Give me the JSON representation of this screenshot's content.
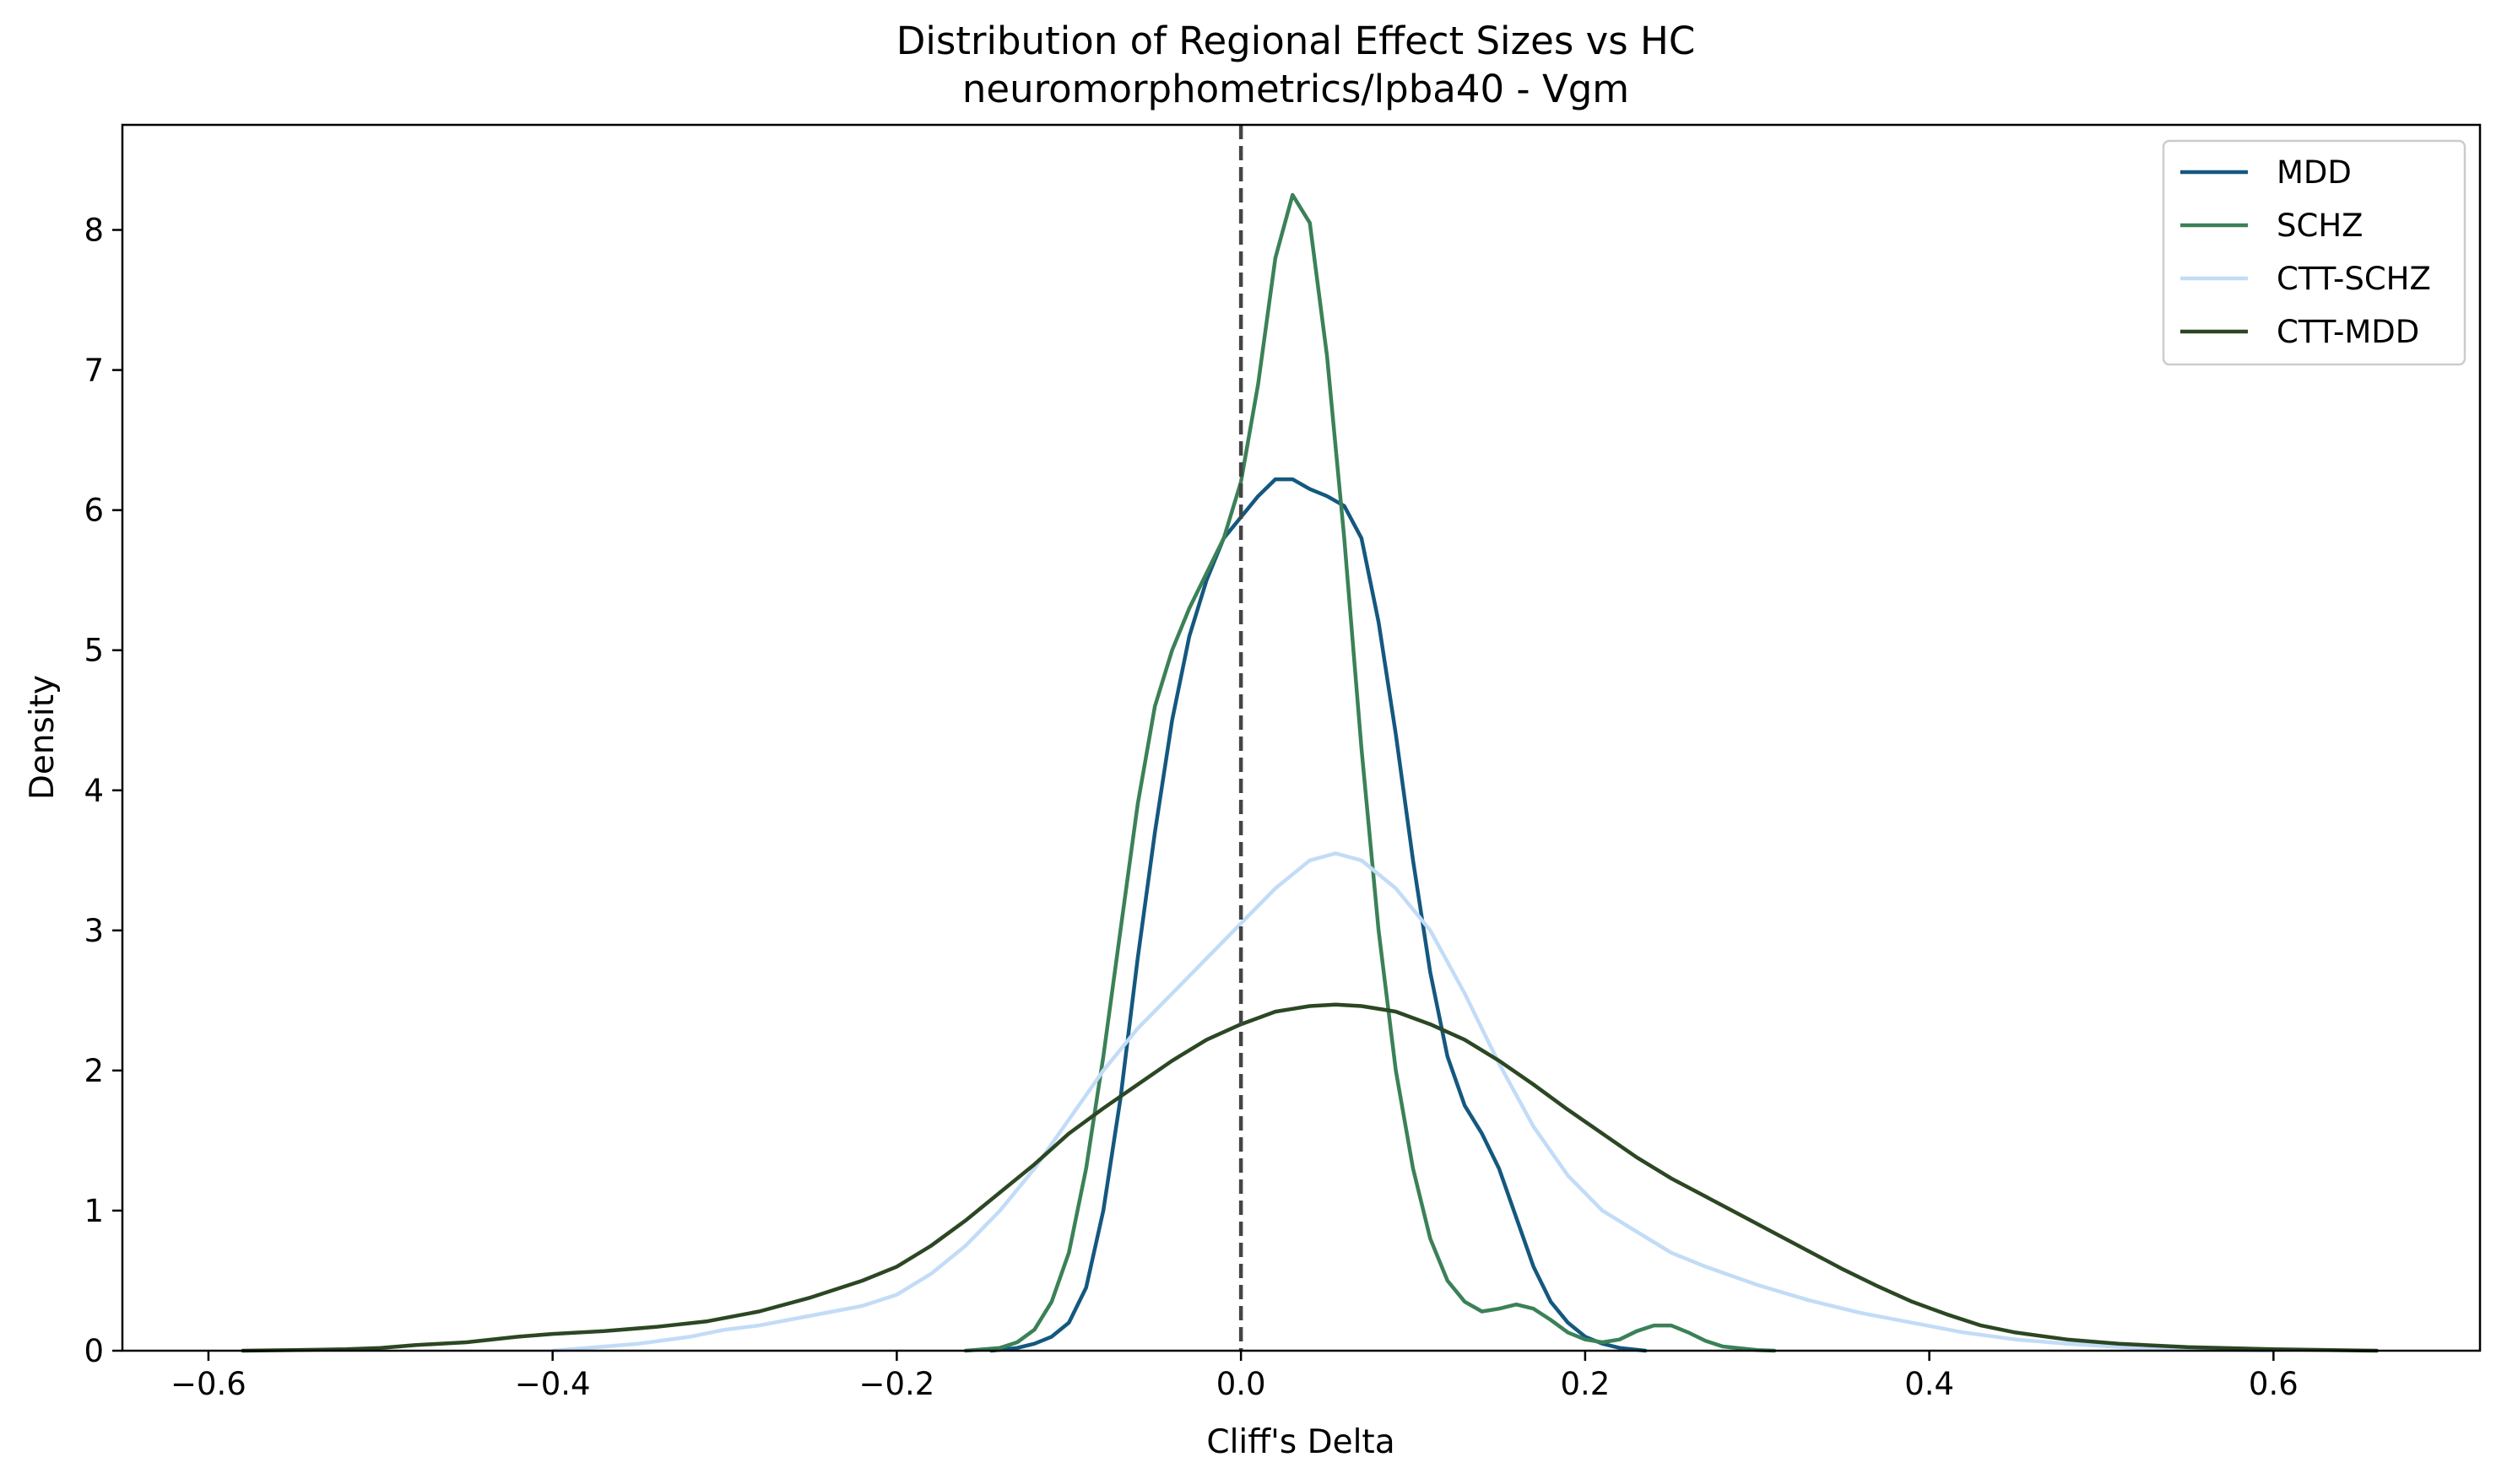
{
  "chart_data": {
    "type": "line",
    "title": "Distribution of Regional Effect Sizes vs HC",
    "subtitle": "neuromorphometrics/lpba40 - Vgm",
    "xlabel": "Cliff's Delta",
    "ylabel": "Density",
    "xlim": [
      -0.65,
      0.72
    ],
    "ylim": [
      0,
      8.75
    ],
    "xticks": [
      -0.6,
      -0.4,
      -0.2,
      0.0,
      0.2,
      0.4,
      0.6
    ],
    "xtick_labels": [
      "−0.6",
      "−0.4",
      "−0.2",
      "0.0",
      "0.2",
      "0.4",
      "0.6"
    ],
    "yticks": [
      0,
      1,
      2,
      3,
      4,
      5,
      6,
      7,
      8
    ],
    "ytick_labels": [
      "0",
      "1",
      "2",
      "3",
      "4",
      "5",
      "6",
      "7",
      "8"
    ],
    "reference_line": {
      "x": 0.0,
      "style": "dashed",
      "color": "#444444"
    },
    "grid": false,
    "legend_position": "top-right",
    "series": [
      {
        "name": "MDD",
        "color": "#14587f",
        "points": [
          [
            -0.145,
            0
          ],
          [
            -0.13,
            0.02
          ],
          [
            -0.12,
            0.05
          ],
          [
            -0.11,
            0.1
          ],
          [
            -0.1,
            0.2
          ],
          [
            -0.09,
            0.45
          ],
          [
            -0.08,
            1.0
          ],
          [
            -0.07,
            1.8
          ],
          [
            -0.06,
            2.8
          ],
          [
            -0.05,
            3.7
          ],
          [
            -0.04,
            4.5
          ],
          [
            -0.03,
            5.1
          ],
          [
            -0.02,
            5.5
          ],
          [
            -0.01,
            5.8
          ],
          [
            0.0,
            5.95
          ],
          [
            0.01,
            6.1
          ],
          [
            0.02,
            6.22
          ],
          [
            0.03,
            6.22
          ],
          [
            0.04,
            6.15
          ],
          [
            0.05,
            6.1
          ],
          [
            0.06,
            6.03
          ],
          [
            0.07,
            5.8
          ],
          [
            0.08,
            5.2
          ],
          [
            0.09,
            4.4
          ],
          [
            0.1,
            3.5
          ],
          [
            0.11,
            2.7
          ],
          [
            0.12,
            2.1
          ],
          [
            0.13,
            1.75
          ],
          [
            0.14,
            1.55
          ],
          [
            0.15,
            1.3
          ],
          [
            0.16,
            0.95
          ],
          [
            0.17,
            0.6
          ],
          [
            0.18,
            0.35
          ],
          [
            0.19,
            0.2
          ],
          [
            0.2,
            0.1
          ],
          [
            0.21,
            0.05
          ],
          [
            0.22,
            0.02
          ],
          [
            0.235,
            0
          ]
        ]
      },
      {
        "name": "SCHZ",
        "color": "#3b8157",
        "points": [
          [
            -0.16,
            0
          ],
          [
            -0.14,
            0.02
          ],
          [
            -0.13,
            0.06
          ],
          [
            -0.12,
            0.15
          ],
          [
            -0.11,
            0.35
          ],
          [
            -0.1,
            0.7
          ],
          [
            -0.09,
            1.3
          ],
          [
            -0.08,
            2.1
          ],
          [
            -0.07,
            3.0
          ],
          [
            -0.06,
            3.9
          ],
          [
            -0.05,
            4.6
          ],
          [
            -0.04,
            5.0
          ],
          [
            -0.03,
            5.3
          ],
          [
            -0.02,
            5.55
          ],
          [
            -0.01,
            5.8
          ],
          [
            0.0,
            6.2
          ],
          [
            0.01,
            6.9
          ],
          [
            0.02,
            7.8
          ],
          [
            0.03,
            8.25
          ],
          [
            0.04,
            8.05
          ],
          [
            0.05,
            7.1
          ],
          [
            0.06,
            5.8
          ],
          [
            0.07,
            4.3
          ],
          [
            0.08,
            3.0
          ],
          [
            0.09,
            2.0
          ],
          [
            0.1,
            1.3
          ],
          [
            0.11,
            0.8
          ],
          [
            0.12,
            0.5
          ],
          [
            0.13,
            0.35
          ],
          [
            0.14,
            0.28
          ],
          [
            0.15,
            0.3
          ],
          [
            0.16,
            0.33
          ],
          [
            0.17,
            0.3
          ],
          [
            0.18,
            0.22
          ],
          [
            0.19,
            0.13
          ],
          [
            0.2,
            0.08
          ],
          [
            0.21,
            0.06
          ],
          [
            0.22,
            0.08
          ],
          [
            0.23,
            0.14
          ],
          [
            0.24,
            0.18
          ],
          [
            0.25,
            0.18
          ],
          [
            0.26,
            0.13
          ],
          [
            0.27,
            0.07
          ],
          [
            0.28,
            0.03
          ],
          [
            0.3,
            0.005
          ],
          [
            0.31,
            0
          ]
        ]
      },
      {
        "name": "CTT-SCHZ",
        "color": "#c2dcf7",
        "points": [
          [
            -0.4,
            0
          ],
          [
            -0.38,
            0.02
          ],
          [
            -0.35,
            0.05
          ],
          [
            -0.32,
            0.1
          ],
          [
            -0.3,
            0.15
          ],
          [
            -0.28,
            0.18
          ],
          [
            -0.25,
            0.25
          ],
          [
            -0.22,
            0.32
          ],
          [
            -0.2,
            0.4
          ],
          [
            -0.18,
            0.55
          ],
          [
            -0.16,
            0.75
          ],
          [
            -0.14,
            1.0
          ],
          [
            -0.12,
            1.3
          ],
          [
            -0.1,
            1.65
          ],
          [
            -0.08,
            2.0
          ],
          [
            -0.06,
            2.3
          ],
          [
            -0.04,
            2.55
          ],
          [
            -0.02,
            2.8
          ],
          [
            0.0,
            3.05
          ],
          [
            0.02,
            3.3
          ],
          [
            0.04,
            3.5
          ],
          [
            0.055,
            3.55
          ],
          [
            0.07,
            3.5
          ],
          [
            0.09,
            3.3
          ],
          [
            0.11,
            3.0
          ],
          [
            0.13,
            2.55
          ],
          [
            0.15,
            2.05
          ],
          [
            0.17,
            1.6
          ],
          [
            0.19,
            1.25
          ],
          [
            0.21,
            1.0
          ],
          [
            0.23,
            0.85
          ],
          [
            0.25,
            0.7
          ],
          [
            0.27,
            0.6
          ],
          [
            0.3,
            0.47
          ],
          [
            0.33,
            0.36
          ],
          [
            0.36,
            0.27
          ],
          [
            0.39,
            0.2
          ],
          [
            0.42,
            0.13
          ],
          [
            0.45,
            0.08
          ],
          [
            0.48,
            0.05
          ],
          [
            0.52,
            0.02
          ],
          [
            0.56,
            0.01
          ],
          [
            0.6,
            0
          ]
        ]
      },
      {
        "name": "CTT-MDD",
        "color": "#2b4723",
        "points": [
          [
            -0.58,
            0
          ],
          [
            -0.55,
            0.005
          ],
          [
            -0.52,
            0.01
          ],
          [
            -0.5,
            0.02
          ],
          [
            -0.48,
            0.04
          ],
          [
            -0.45,
            0.06
          ],
          [
            -0.42,
            0.1
          ],
          [
            -0.4,
            0.12
          ],
          [
            -0.37,
            0.14
          ],
          [
            -0.34,
            0.17
          ],
          [
            -0.31,
            0.21
          ],
          [
            -0.28,
            0.28
          ],
          [
            -0.25,
            0.38
          ],
          [
            -0.22,
            0.5
          ],
          [
            -0.2,
            0.6
          ],
          [
            -0.18,
            0.75
          ],
          [
            -0.16,
            0.93
          ],
          [
            -0.14,
            1.13
          ],
          [
            -0.12,
            1.33
          ],
          [
            -0.1,
            1.55
          ],
          [
            -0.08,
            1.73
          ],
          [
            -0.06,
            1.9
          ],
          [
            -0.04,
            2.07
          ],
          [
            -0.02,
            2.22
          ],
          [
            0.0,
            2.33
          ],
          [
            0.02,
            2.42
          ],
          [
            0.04,
            2.46
          ],
          [
            0.055,
            2.47
          ],
          [
            0.07,
            2.46
          ],
          [
            0.09,
            2.42
          ],
          [
            0.11,
            2.33
          ],
          [
            0.13,
            2.22
          ],
          [
            0.15,
            2.07
          ],
          [
            0.17,
            1.9
          ],
          [
            0.19,
            1.72
          ],
          [
            0.21,
            1.55
          ],
          [
            0.23,
            1.38
          ],
          [
            0.25,
            1.23
          ],
          [
            0.27,
            1.1
          ],
          [
            0.29,
            0.97
          ],
          [
            0.31,
            0.84
          ],
          [
            0.33,
            0.71
          ],
          [
            0.35,
            0.58
          ],
          [
            0.37,
            0.46
          ],
          [
            0.39,
            0.35
          ],
          [
            0.41,
            0.26
          ],
          [
            0.43,
            0.18
          ],
          [
            0.45,
            0.13
          ],
          [
            0.48,
            0.08
          ],
          [
            0.51,
            0.05
          ],
          [
            0.55,
            0.025
          ],
          [
            0.6,
            0.01
          ],
          [
            0.66,
            0
          ]
        ]
      }
    ]
  }
}
